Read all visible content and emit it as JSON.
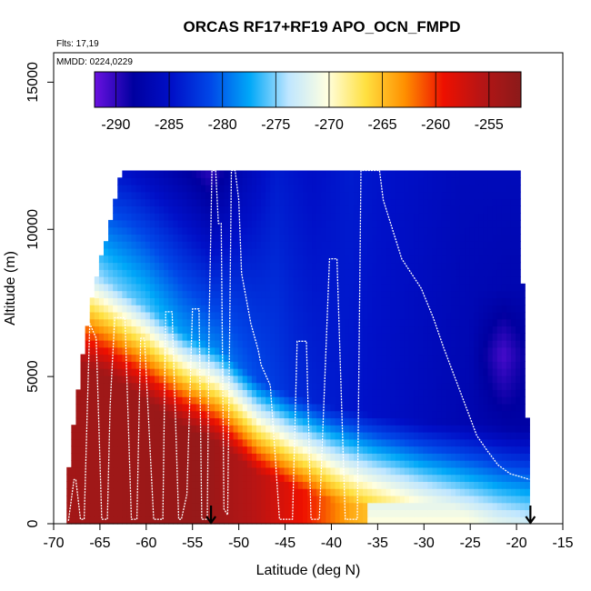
{
  "chart_data": {
    "type": "heatmap",
    "title": "ORCAS RF17+RF19 APO_OCN_FMPD",
    "flights_note": "Flts: 17,19",
    "date_note": "MMDD: 0224,0229",
    "xlabel": "Latitude (deg N)",
    "ylabel": "Altitude (m)",
    "xlim": [
      -70,
      -15
    ],
    "ylim": [
      0,
      16000
    ],
    "x_ticks": [
      -70,
      -65,
      -60,
      -55,
      -50,
      -45,
      -40,
      -35,
      -30,
      -25,
      -20,
      -15
    ],
    "y_ticks": [
      0,
      5000,
      10000,
      15000
    ],
    "colorbar": {
      "min": -292,
      "max": -252,
      "ticks": [
        -290,
        -285,
        -280,
        -275,
        -270,
        -265,
        -260,
        -255
      ],
      "colors": [
        "#6a11e0",
        "#0000a0",
        "#0010c8",
        "#0048e8",
        "#00a8f8",
        "#bfe6ff",
        "#ffffe0",
        "#ffe040",
        "#ff9000",
        "#ee1000",
        "#b51515",
        "#8b1a1a"
      ]
    },
    "field_extent": {
      "lat_range": [
        -68.6,
        -18.6
      ],
      "alt_top_m": 12000
    },
    "flight_track": {
      "lat": [
        -68.4,
        -67.8,
        -67.6,
        -67.1,
        -66.7,
        -66.1,
        -65.4,
        -64.8,
        -64.2,
        -63.9,
        -63.4,
        -62.3,
        -61.6,
        -61.0,
        -60.6,
        -60.2,
        -59.2,
        -58.2,
        -57.9,
        -57.2,
        -56.5,
        -56.2,
        -55.6,
        -55.0,
        -54.3,
        -54.0,
        -53.4,
        -53.2,
        -52.9,
        -52.5,
        -52.2,
        -51.9,
        -51.6,
        -51.2,
        -50.8,
        -50.4,
        -50.0,
        -49.7,
        -48.7,
        -47.9,
        -47.6,
        -46.6,
        -45.6,
        -44.2,
        -43.7,
        -42.7,
        -42.2,
        -41.3,
        -40.2,
        -39.4,
        -38.5,
        -37.7,
        -37.2,
        -36.8,
        -35.5,
        -34.8,
        -34.4,
        -33.4,
        -32.4,
        -30.3,
        -29.0,
        -27.9,
        -26.7,
        -25.5,
        -24.3,
        -23.2,
        -22.0,
        -20.7,
        -19.6,
        -18.6
      ],
      "alt": [
        100,
        1500,
        1500,
        150,
        150,
        6800,
        6300,
        150,
        150,
        4000,
        7000,
        7000,
        150,
        150,
        6300,
        6300,
        150,
        150,
        7200,
        7200,
        150,
        150,
        1000,
        7300,
        7300,
        150,
        150,
        7000,
        12000,
        12000,
        10200,
        10200,
        500,
        300,
        12000,
        12000,
        11000,
        8500,
        6800,
        5900,
        5400,
        4700,
        150,
        150,
        6200,
        6200,
        150,
        150,
        9000,
        9000,
        150,
        150,
        150,
        12000,
        12000,
        12000,
        11000,
        10000,
        9000,
        8000,
        7000,
        6000,
        5000,
        4000,
        3000,
        2500,
        2000,
        1700,
        1600,
        1500
      ]
    },
    "markers": {
      "arrows_at_lat": [
        -53.0,
        -18.5
      ]
    }
  }
}
